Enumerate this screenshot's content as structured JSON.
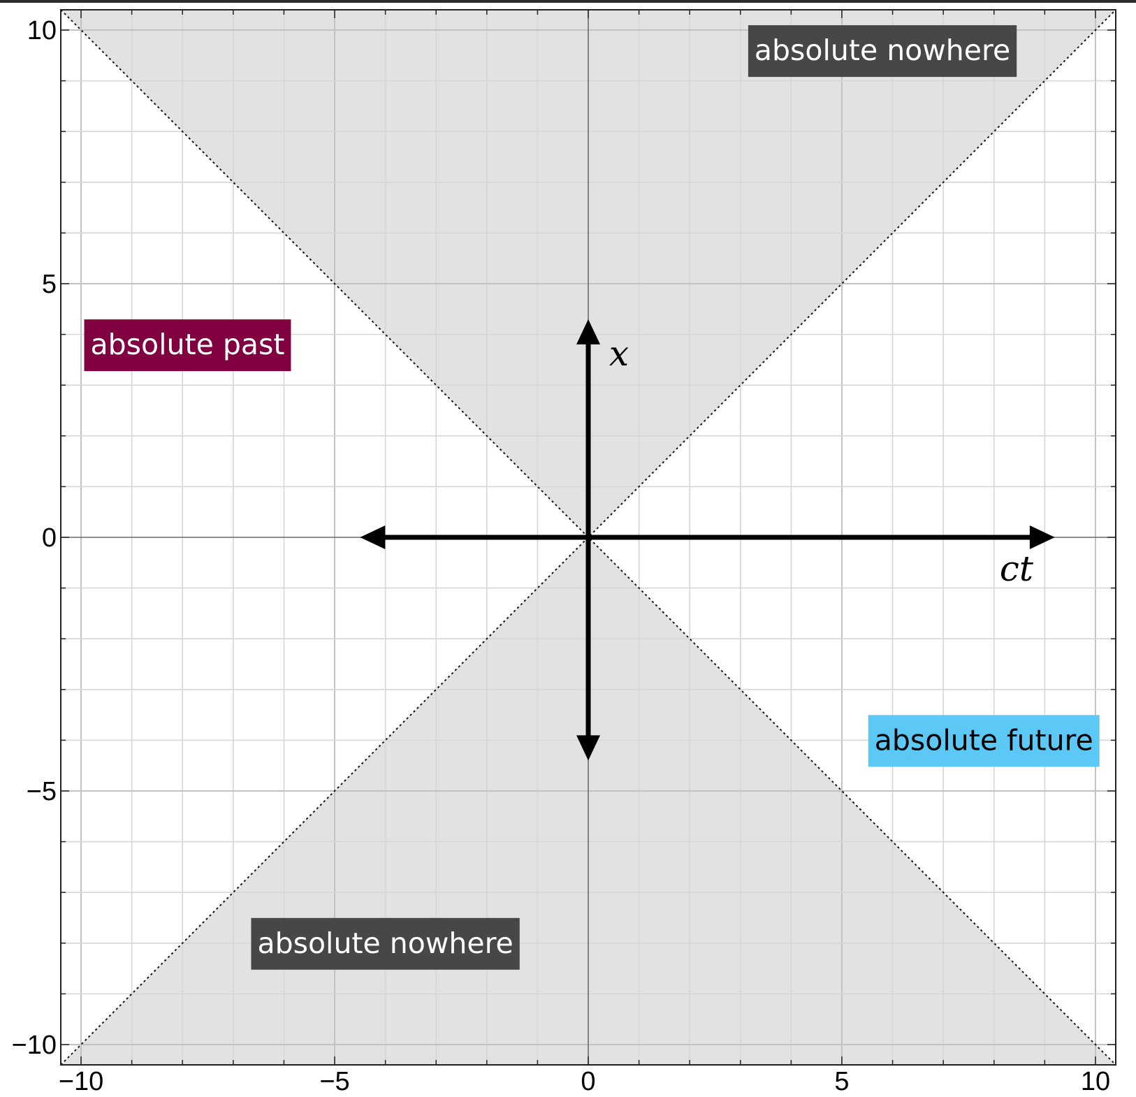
{
  "chart_data": {
    "type": "area",
    "xlim": [
      -10.4,
      10.4
    ],
    "ylim": [
      -10.4,
      10.4
    ],
    "x_ticks": [
      -10,
      -5,
      0,
      5,
      10
    ],
    "y_ticks": [
      -10,
      -5,
      0,
      5,
      10
    ],
    "x_tick_labels": [
      "−10",
      "−5",
      "0",
      "5",
      "10"
    ],
    "y_tick_labels": [
      "−10",
      "−5",
      "0",
      "5",
      "10"
    ],
    "minor_grid_step": 1,
    "grid": true,
    "light_cone_lines": [
      {
        "x": [
          -10.4,
          10.4
        ],
        "y": [
          -10.4,
          10.4
        ],
        "style": "dotted"
      },
      {
        "x": [
          -10.4,
          10.4
        ],
        "y": [
          10.4,
          -10.4
        ],
        "style": "dotted"
      }
    ],
    "shaded_regions": [
      {
        "description_label": "absolute nowhere",
        "condition": "y > |x|, y > 0",
        "color": "#e2e2e2"
      },
      {
        "description_label": "absolute nowhere",
        "condition": "y < -|x|, y < 0",
        "color": "#e2e2e2"
      }
    ],
    "arrows": {
      "horizontal": {
        "from": -4.5,
        "to": 9.2,
        "label": "ct"
      },
      "vertical": {
        "from": -4.4,
        "to": 4.3,
        "label": "x"
      }
    },
    "annotations": [
      {
        "text": "absolute nowhere",
        "x": 5.8,
        "y": 9.6,
        "bg": "#474747",
        "fg": "#ffffff"
      },
      {
        "text": "absolute past",
        "x": -7.9,
        "y": 3.8,
        "bg": "#800040",
        "fg": "#ffffff"
      },
      {
        "text": "absolute future",
        "x": 7.8,
        "y": -4.0,
        "bg": "#5bc8f5",
        "fg": "#000000"
      },
      {
        "text": "absolute nowhere",
        "x": -4.0,
        "y": -8.0,
        "bg": "#474747",
        "fg": "#ffffff"
      }
    ]
  }
}
